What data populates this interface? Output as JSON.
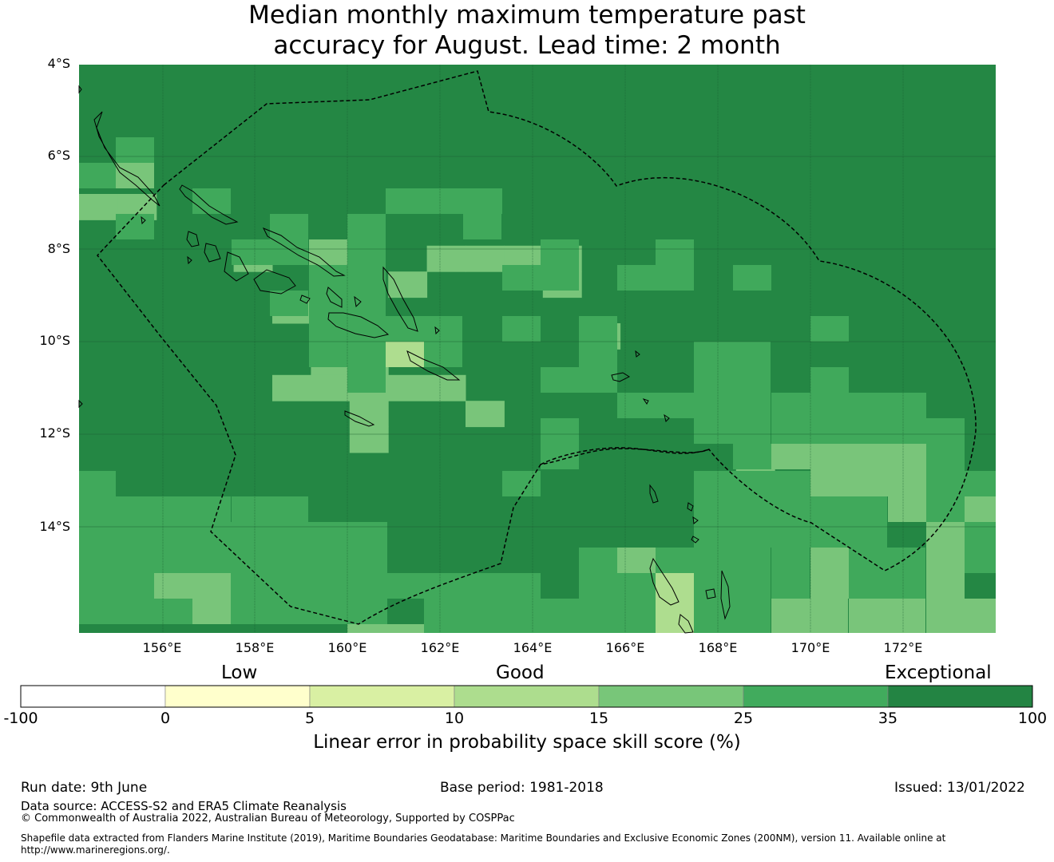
{
  "title_line1": "Median monthly maximum temperature past",
  "title_line2": "accuracy for August. Lead time: 2 month",
  "map": {
    "lat_labels": [
      "4°S",
      "6°S",
      "8°S",
      "10°S",
      "12°S",
      "14°S"
    ],
    "lon_labels": [
      "156°E",
      "158°E",
      "160°E",
      "162°E",
      "164°E",
      "166°E",
      "168°E",
      "170°E",
      "172°E"
    ],
    "colors": {
      "exceptional": "#248744",
      "very_good": "#40a95b",
      "good": "#79c57a",
      "fair": "#aedd8f",
      "low": "#d9f0a3"
    },
    "rows": [
      "44444444444444444444444",
      "44444444444444444444444",
      "44444444444444444444444",
      "44444444444444444444444",
      "44444444444444444444444",
      "33444444444444444444444",
      "44444444444444444444444",
      "44443444433334444444444",
      "44444434344434444444444",
      "44444334444444444444444",
      "44444444444443444444444",
      "44444433444444444444444",
      "44444333334444444444444",
      "44444443443444444444444",
      "44444443444444444444444",
      "44444444444444444344444",
      "44444444444444444444444",
      "44444444444444444444444",
      "44444444444444444444444",
      "44444444444444444444444",
      "44444444444444444444444",
      "44444444444444444444444",
      "44444444444444444444444"
    ],
    "land_features": [
      "choiseul-island",
      "santa-isabel-island",
      "new-georgia-islands",
      "guadalcanal-island",
      "malaita-island",
      "makira-island",
      "rennell-island",
      "santa-cruz-islands",
      "espiritu-santo-island",
      "banks-islands",
      "malekula-island"
    ]
  },
  "legend": {
    "categories": [
      "Low",
      "Good",
      "Exceptional"
    ],
    "ticks": [
      "-100",
      "0",
      "5",
      "10",
      "15",
      "25",
      "35",
      "100"
    ],
    "colors": [
      "#ffffff",
      "#ffffcc",
      "#d9f0a3",
      "#addd8e",
      "#78c679",
      "#41ab5d",
      "#238443"
    ],
    "label": "Linear error in probability space skill score (%)"
  },
  "footer": {
    "run_date": "Run date: 9th June",
    "base_period": "Base period: 1981-2018",
    "issued": "Issued: 13/01/2022",
    "data_source": "Data source: ACCESS-S2 and ERA5 Climate Reanalysis",
    "copyright": "© Commonwealth of Australia 2022, Australian Bureau of Meteorology, Supported by COSPPac",
    "shapefile": "Shapefile data extracted from Flanders Marine Institute (2019), Maritime Boundaries Geodatabase: Maritime Boundaries and Exclusive Economic Zones (200NM), version 11. Available online at http://www.marineregions.org/."
  }
}
